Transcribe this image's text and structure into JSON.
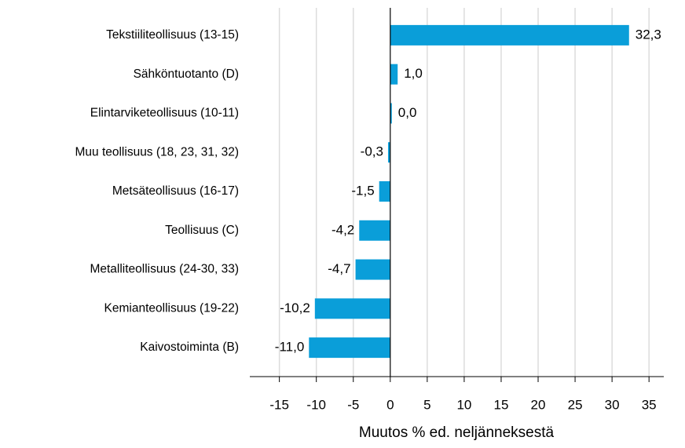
{
  "chart_data": {
    "type": "bar",
    "orientation": "horizontal",
    "categories": [
      "Tekstiiliteollisuus (13-15)",
      "Sähköntuotanto (D)",
      "Elintarviketeollisuus (10-11)",
      "Muu teollisuus (18, 23, 31, 32)",
      "Metsäteollisuus (16-17)",
      "Teollisuus (C)",
      "Metalliteollisuus (24-30, 33)",
      "Kemianteollisuus (19-22)",
      "Kaivostoiminta (B)"
    ],
    "values": [
      32.3,
      1.0,
      0.0,
      -0.3,
      -1.5,
      -4.2,
      -4.7,
      -10.2,
      -11.0
    ],
    "value_labels": [
      "32,3",
      "1,0",
      "0,0",
      "-0,3",
      "-1,5",
      "-4,2",
      "-4,7",
      "-10,2",
      "-11,0"
    ],
    "color": "#0a9ed9",
    "xlabel": "Muutos % ed. neljänneksestä",
    "xlim": [
      -19,
      37
    ],
    "xticks": [
      -15,
      -10,
      -5,
      0,
      5,
      10,
      15,
      20,
      25,
      30,
      35
    ],
    "grid": true
  }
}
